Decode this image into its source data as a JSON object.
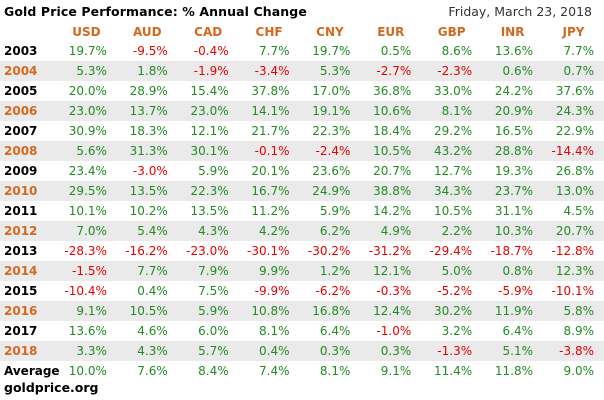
{
  "title": "Gold Price Performance: % Annual Change",
  "date": "Friday, March 23, 2018",
  "footer": "goldprice.org",
  "colors": {
    "header": "#d2691e",
    "positive": "#228b22",
    "negative": "#e60000",
    "alt_row": "#eaeaea"
  },
  "currencies": [
    "USD",
    "AUD",
    "CAD",
    "CHF",
    "CNY",
    "EUR",
    "GBP",
    "INR",
    "JPY"
  ],
  "rows": [
    {
      "year": "2003",
      "values": [
        "19.7%",
        "-9.5%",
        "-0.4%",
        "7.7%",
        "19.7%",
        "0.5%",
        "8.6%",
        "13.6%",
        "7.7%"
      ]
    },
    {
      "year": "2004",
      "values": [
        "5.3%",
        "1.8%",
        "-1.9%",
        "-3.4%",
        "5.3%",
        "-2.7%",
        "-2.3%",
        "0.6%",
        "0.7%"
      ]
    },
    {
      "year": "2005",
      "values": [
        "20.0%",
        "28.9%",
        "15.4%",
        "37.8%",
        "17.0%",
        "36.8%",
        "33.0%",
        "24.2%",
        "37.6%"
      ]
    },
    {
      "year": "2006",
      "values": [
        "23.0%",
        "13.7%",
        "23.0%",
        "14.1%",
        "19.1%",
        "10.6%",
        "8.1%",
        "20.9%",
        "24.3%"
      ]
    },
    {
      "year": "2007",
      "values": [
        "30.9%",
        "18.3%",
        "12.1%",
        "21.7%",
        "22.3%",
        "18.4%",
        "29.2%",
        "16.5%",
        "22.9%"
      ]
    },
    {
      "year": "2008",
      "values": [
        "5.6%",
        "31.3%",
        "30.1%",
        "-0.1%",
        "-2.4%",
        "10.5%",
        "43.2%",
        "28.8%",
        "-14.4%"
      ]
    },
    {
      "year": "2009",
      "values": [
        "23.4%",
        "-3.0%",
        "5.9%",
        "20.1%",
        "23.6%",
        "20.7%",
        "12.7%",
        "19.3%",
        "26.8%"
      ]
    },
    {
      "year": "2010",
      "values": [
        "29.5%",
        "13.5%",
        "22.3%",
        "16.7%",
        "24.9%",
        "38.8%",
        "34.3%",
        "23.7%",
        "13.0%"
      ]
    },
    {
      "year": "2011",
      "values": [
        "10.1%",
        "10.2%",
        "13.5%",
        "11.2%",
        "5.9%",
        "14.2%",
        "10.5%",
        "31.1%",
        "4.5%"
      ]
    },
    {
      "year": "2012",
      "values": [
        "7.0%",
        "5.4%",
        "4.3%",
        "4.2%",
        "6.2%",
        "4.9%",
        "2.2%",
        "10.3%",
        "20.7%"
      ]
    },
    {
      "year": "2013",
      "values": [
        "-28.3%",
        "-16.2%",
        "-23.0%",
        "-30.1%",
        "-30.2%",
        "-31.2%",
        "-29.4%",
        "-18.7%",
        "-12.8%"
      ]
    },
    {
      "year": "2014",
      "values": [
        "-1.5%",
        "7.7%",
        "7.9%",
        "9.9%",
        "1.2%",
        "12.1%",
        "5.0%",
        "0.8%",
        "12.3%"
      ]
    },
    {
      "year": "2015",
      "values": [
        "-10.4%",
        "0.4%",
        "7.5%",
        "-9.9%",
        "-6.2%",
        "-0.3%",
        "-5.2%",
        "-5.9%",
        "-10.1%"
      ]
    },
    {
      "year": "2016",
      "values": [
        "9.1%",
        "10.5%",
        "5.9%",
        "10.8%",
        "16.8%",
        "12.4%",
        "30.2%",
        "11.9%",
        "5.8%"
      ]
    },
    {
      "year": "2017",
      "values": [
        "13.6%",
        "4.6%",
        "6.0%",
        "8.1%",
        "6.4%",
        "-1.0%",
        "3.2%",
        "6.4%",
        "8.9%"
      ]
    },
    {
      "year": "2018",
      "values": [
        "3.3%",
        "4.3%",
        "5.7%",
        "0.4%",
        "0.3%",
        "0.3%",
        "-1.3%",
        "5.1%",
        "-3.8%"
      ]
    }
  ],
  "average": {
    "label": "Average",
    "values": [
      "10.0%",
      "7.6%",
      "8.4%",
      "7.4%",
      "8.1%",
      "9.1%",
      "11.4%",
      "11.8%",
      "9.0%"
    ]
  }
}
